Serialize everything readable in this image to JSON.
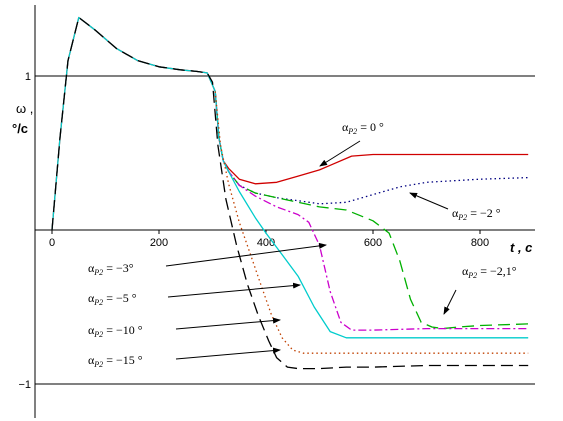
{
  "chart_data": {
    "type": "line",
    "title": "",
    "ylabel_line1": "ω ,",
    "ylabel_line2": "°/c",
    "xlabel": "t , c",
    "xlim": [
      -10,
      900
    ],
    "ylim": [
      -1.2,
      1.4
    ],
    "x_ticks": [
      0,
      200,
      400,
      600,
      800
    ],
    "y_ticks": [
      1,
      -1
    ],
    "grid": true,
    "legend": "none",
    "series": [
      {
        "color": "#d00000",
        "dash": "solid",
        "x": [
          0,
          15,
          30,
          50,
          80,
          120,
          160,
          200,
          240,
          270,
          290,
          305,
          312,
          320,
          330,
          350,
          380,
          420,
          460,
          500,
          520,
          560,
          600,
          650,
          700,
          800,
          890
        ],
        "y": [
          0,
          0.6,
          1.1,
          1.38,
          1.3,
          1.18,
          1.1,
          1.06,
          1.04,
          1.03,
          1.02,
          0.9,
          0.6,
          0.45,
          0.4,
          0.33,
          0.3,
          0.31,
          0.35,
          0.39,
          0.42,
          0.48,
          0.49,
          0.49,
          0.49,
          0.49,
          0.49
        ]
      },
      {
        "color": "#000080",
        "dash": "dotted",
        "x": [
          305,
          312,
          320,
          330,
          350,
          380,
          420,
          460,
          500,
          550,
          600,
          650,
          700,
          800,
          890
        ],
        "y": [
          0.9,
          0.6,
          0.45,
          0.38,
          0.29,
          0.24,
          0.21,
          0.19,
          0.17,
          0.18,
          0.23,
          0.28,
          0.31,
          0.33,
          0.34
        ]
      },
      {
        "color": "#00b000",
        "dash": "long-dash",
        "x": [
          305,
          312,
          320,
          330,
          350,
          380,
          420,
          460,
          500,
          550,
          600,
          630,
          650,
          670,
          690,
          710,
          730,
          760,
          800,
          890
        ],
        "y": [
          0.9,
          0.6,
          0.45,
          0.38,
          0.29,
          0.24,
          0.21,
          0.18,
          0.15,
          0.13,
          0.06,
          -0.02,
          -0.2,
          -0.45,
          -0.6,
          -0.63,
          -0.64,
          -0.63,
          -0.62,
          -0.61
        ]
      },
      {
        "color": "#cc00cc",
        "dash": "dash-dot",
        "x": [
          305,
          312,
          320,
          330,
          350,
          380,
          420,
          460,
          480,
          500,
          520,
          540,
          560,
          600,
          700,
          800,
          890
        ],
        "y": [
          0.9,
          0.6,
          0.45,
          0.38,
          0.29,
          0.22,
          0.15,
          0.1,
          0.05,
          -0.1,
          -0.4,
          -0.6,
          -0.65,
          -0.65,
          -0.64,
          -0.64,
          -0.64
        ]
      },
      {
        "color": "#00cccc",
        "dash": "solid",
        "x": [
          0,
          15,
          30,
          50,
          80,
          120,
          160,
          200,
          240,
          270,
          290,
          305,
          312,
          320,
          330,
          350,
          380,
          400,
          430,
          460,
          490,
          520,
          550,
          600,
          700,
          800,
          890
        ],
        "y": [
          0,
          0.6,
          1.1,
          1.38,
          1.3,
          1.18,
          1.1,
          1.06,
          1.04,
          1.03,
          1.02,
          0.9,
          0.6,
          0.45,
          0.38,
          0.25,
          0.08,
          -0.02,
          -0.16,
          -0.3,
          -0.5,
          -0.66,
          -0.7,
          -0.7,
          -0.7,
          -0.7,
          -0.7
        ]
      },
      {
        "color": "#c04000",
        "dash": "dotted",
        "x": [
          305,
          315,
          330,
          350,
          370,
          390,
          410,
          430,
          450,
          470,
          500,
          550,
          600,
          700,
          800,
          890
        ],
        "y": [
          0.9,
          0.55,
          0.3,
          0.05,
          -0.15,
          -0.35,
          -0.55,
          -0.7,
          -0.78,
          -0.8,
          -0.8,
          -0.8,
          -0.8,
          -0.8,
          -0.8,
          -0.8
        ]
      },
      {
        "color": "#000000",
        "dash": "long-dash",
        "x": [
          0,
          15,
          30,
          50,
          80,
          120,
          160,
          200,
          240,
          270,
          290,
          300,
          310,
          325,
          345,
          365,
          385,
          405,
          420,
          440,
          460,
          480,
          500,
          550,
          600,
          700,
          800,
          890
        ],
        "y": [
          0,
          0.6,
          1.1,
          1.38,
          1.3,
          1.18,
          1.1,
          1.06,
          1.04,
          1.03,
          1.02,
          0.96,
          0.55,
          0.2,
          -0.1,
          -0.35,
          -0.55,
          -0.72,
          -0.83,
          -0.89,
          -0.9,
          -0.9,
          -0.9,
          -0.89,
          -0.89,
          -0.88,
          -0.88,
          -0.88
        ]
      }
    ],
    "annotations": [
      {
        "id": "a0",
        "base": "α",
        "sub": "P2",
        "tail": " = 0 °"
      },
      {
        "id": "a2",
        "base": "α",
        "sub": "P2",
        "tail": " = −2 °"
      },
      {
        "id": "a21",
        "base": "α",
        "sub": "P2",
        "tail": " = −2,1°"
      },
      {
        "id": "a3",
        "base": "α",
        "sub": "P2",
        "tail": " = −3°"
      },
      {
        "id": "a5",
        "base": "α",
        "sub": "P2",
        "tail": " = −5 °"
      },
      {
        "id": "a10",
        "base": "α",
        "sub": "P2",
        "tail": " = −10 °"
      },
      {
        "id": "a15",
        "base": "α",
        "sub": "P2",
        "tail": " = −15 °"
      }
    ]
  }
}
